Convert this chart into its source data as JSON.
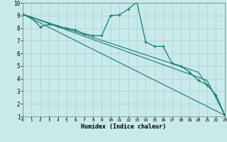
{
  "xlabel": "Humidex (Indice chaleur)",
  "background_color": "#c8eaea",
  "grid_color": "#a8d0d0",
  "line_color": "#1a7a6e",
  "xlim": [
    0,
    23
  ],
  "ylim": [
    1,
    10
  ],
  "xticks": [
    0,
    1,
    2,
    3,
    4,
    5,
    6,
    7,
    8,
    9,
    10,
    11,
    12,
    13,
    14,
    15,
    16,
    17,
    18,
    19,
    20,
    21,
    22,
    23
  ],
  "yticks": [
    1,
    2,
    3,
    4,
    5,
    6,
    7,
    8,
    9,
    10
  ],
  "series_main": {
    "x": [
      0,
      1,
      2,
      3,
      4,
      5,
      6,
      7,
      8,
      9,
      10,
      11,
      12,
      13,
      14,
      15,
      16,
      17,
      18,
      19,
      20,
      21,
      22,
      23
    ],
    "y": [
      9.1,
      8.8,
      8.1,
      8.3,
      8.15,
      8.0,
      7.85,
      7.55,
      7.4,
      7.4,
      9.0,
      9.05,
      9.5,
      10.05,
      6.9,
      6.55,
      6.55,
      5.2,
      5.0,
      4.5,
      3.85,
      3.5,
      2.7,
      1.1
    ]
  },
  "series_diag": [
    {
      "x": [
        0,
        23
      ],
      "y": [
        9.1,
        1.1
      ]
    },
    {
      "x": [
        0,
        21,
        23
      ],
      "y": [
        9.1,
        3.85,
        1.1
      ]
    },
    {
      "x": [
        0,
        20,
        21,
        22,
        23
      ],
      "y": [
        9.1,
        4.5,
        3.5,
        2.7,
        1.1
      ]
    }
  ]
}
